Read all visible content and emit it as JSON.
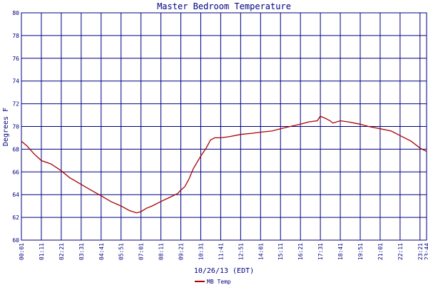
{
  "chart_data": {
    "type": "line",
    "title": "Master Bedroom Temperature",
    "xlabel": "10/26/13 (EDT)",
    "ylabel": "Degrees F",
    "ylim": [
      60,
      80
    ],
    "yticks": [
      60,
      62,
      64,
      66,
      68,
      70,
      72,
      74,
      76,
      78,
      80
    ],
    "xlim": [
      "00:01",
      "23:44"
    ],
    "xticks": [
      "00:01",
      "01:11",
      "02:21",
      "03:31",
      "04:41",
      "05:51",
      "07:01",
      "08:11",
      "09:21",
      "10:31",
      "11:41",
      "12:51",
      "14:01",
      "15:11",
      "16:21",
      "17:31",
      "18:41",
      "19:51",
      "21:01",
      "22:11",
      "23:21",
      "23:44"
    ],
    "grid": true,
    "legend_position": "bottom-center",
    "colors": {
      "line": "#aa0000",
      "grid": "#000080",
      "text": "#000080"
    },
    "series": [
      {
        "name": "MB Temp",
        "x": [
          "00:01",
          "00:20",
          "00:45",
          "01:11",
          "01:45",
          "02:21",
          "02:50",
          "03:31",
          "04:05",
          "04:41",
          "05:15",
          "05:51",
          "06:20",
          "06:45",
          "07:01",
          "07:20",
          "07:40",
          "08:11",
          "08:45",
          "09:10",
          "09:21",
          "09:35",
          "09:50",
          "10:05",
          "10:31",
          "10:50",
          "11:05",
          "11:20",
          "11:41",
          "12:10",
          "12:51",
          "13:30",
          "14:01",
          "14:40",
          "15:11",
          "15:45",
          "16:21",
          "16:50",
          "17:20",
          "17:31",
          "17:50",
          "18:05",
          "18:15",
          "18:41",
          "19:10",
          "19:51",
          "20:20",
          "21:01",
          "21:40",
          "22:11",
          "22:50",
          "23:21",
          "23:44"
        ],
        "y": [
          68.7,
          68.3,
          67.6,
          67.0,
          66.7,
          66.1,
          65.5,
          64.9,
          64.4,
          63.9,
          63.4,
          63.0,
          62.6,
          62.4,
          62.5,
          62.8,
          63.0,
          63.4,
          63.8,
          64.1,
          64.4,
          64.7,
          65.4,
          66.3,
          67.4,
          68.1,
          68.8,
          69.0,
          69.0,
          69.1,
          69.3,
          69.4,
          69.5,
          69.6,
          69.8,
          70.0,
          70.2,
          70.4,
          70.5,
          70.9,
          70.7,
          70.5,
          70.3,
          70.5,
          70.4,
          70.2,
          70.0,
          69.8,
          69.6,
          69.2,
          68.7,
          68.1,
          67.8
        ]
      }
    ]
  }
}
